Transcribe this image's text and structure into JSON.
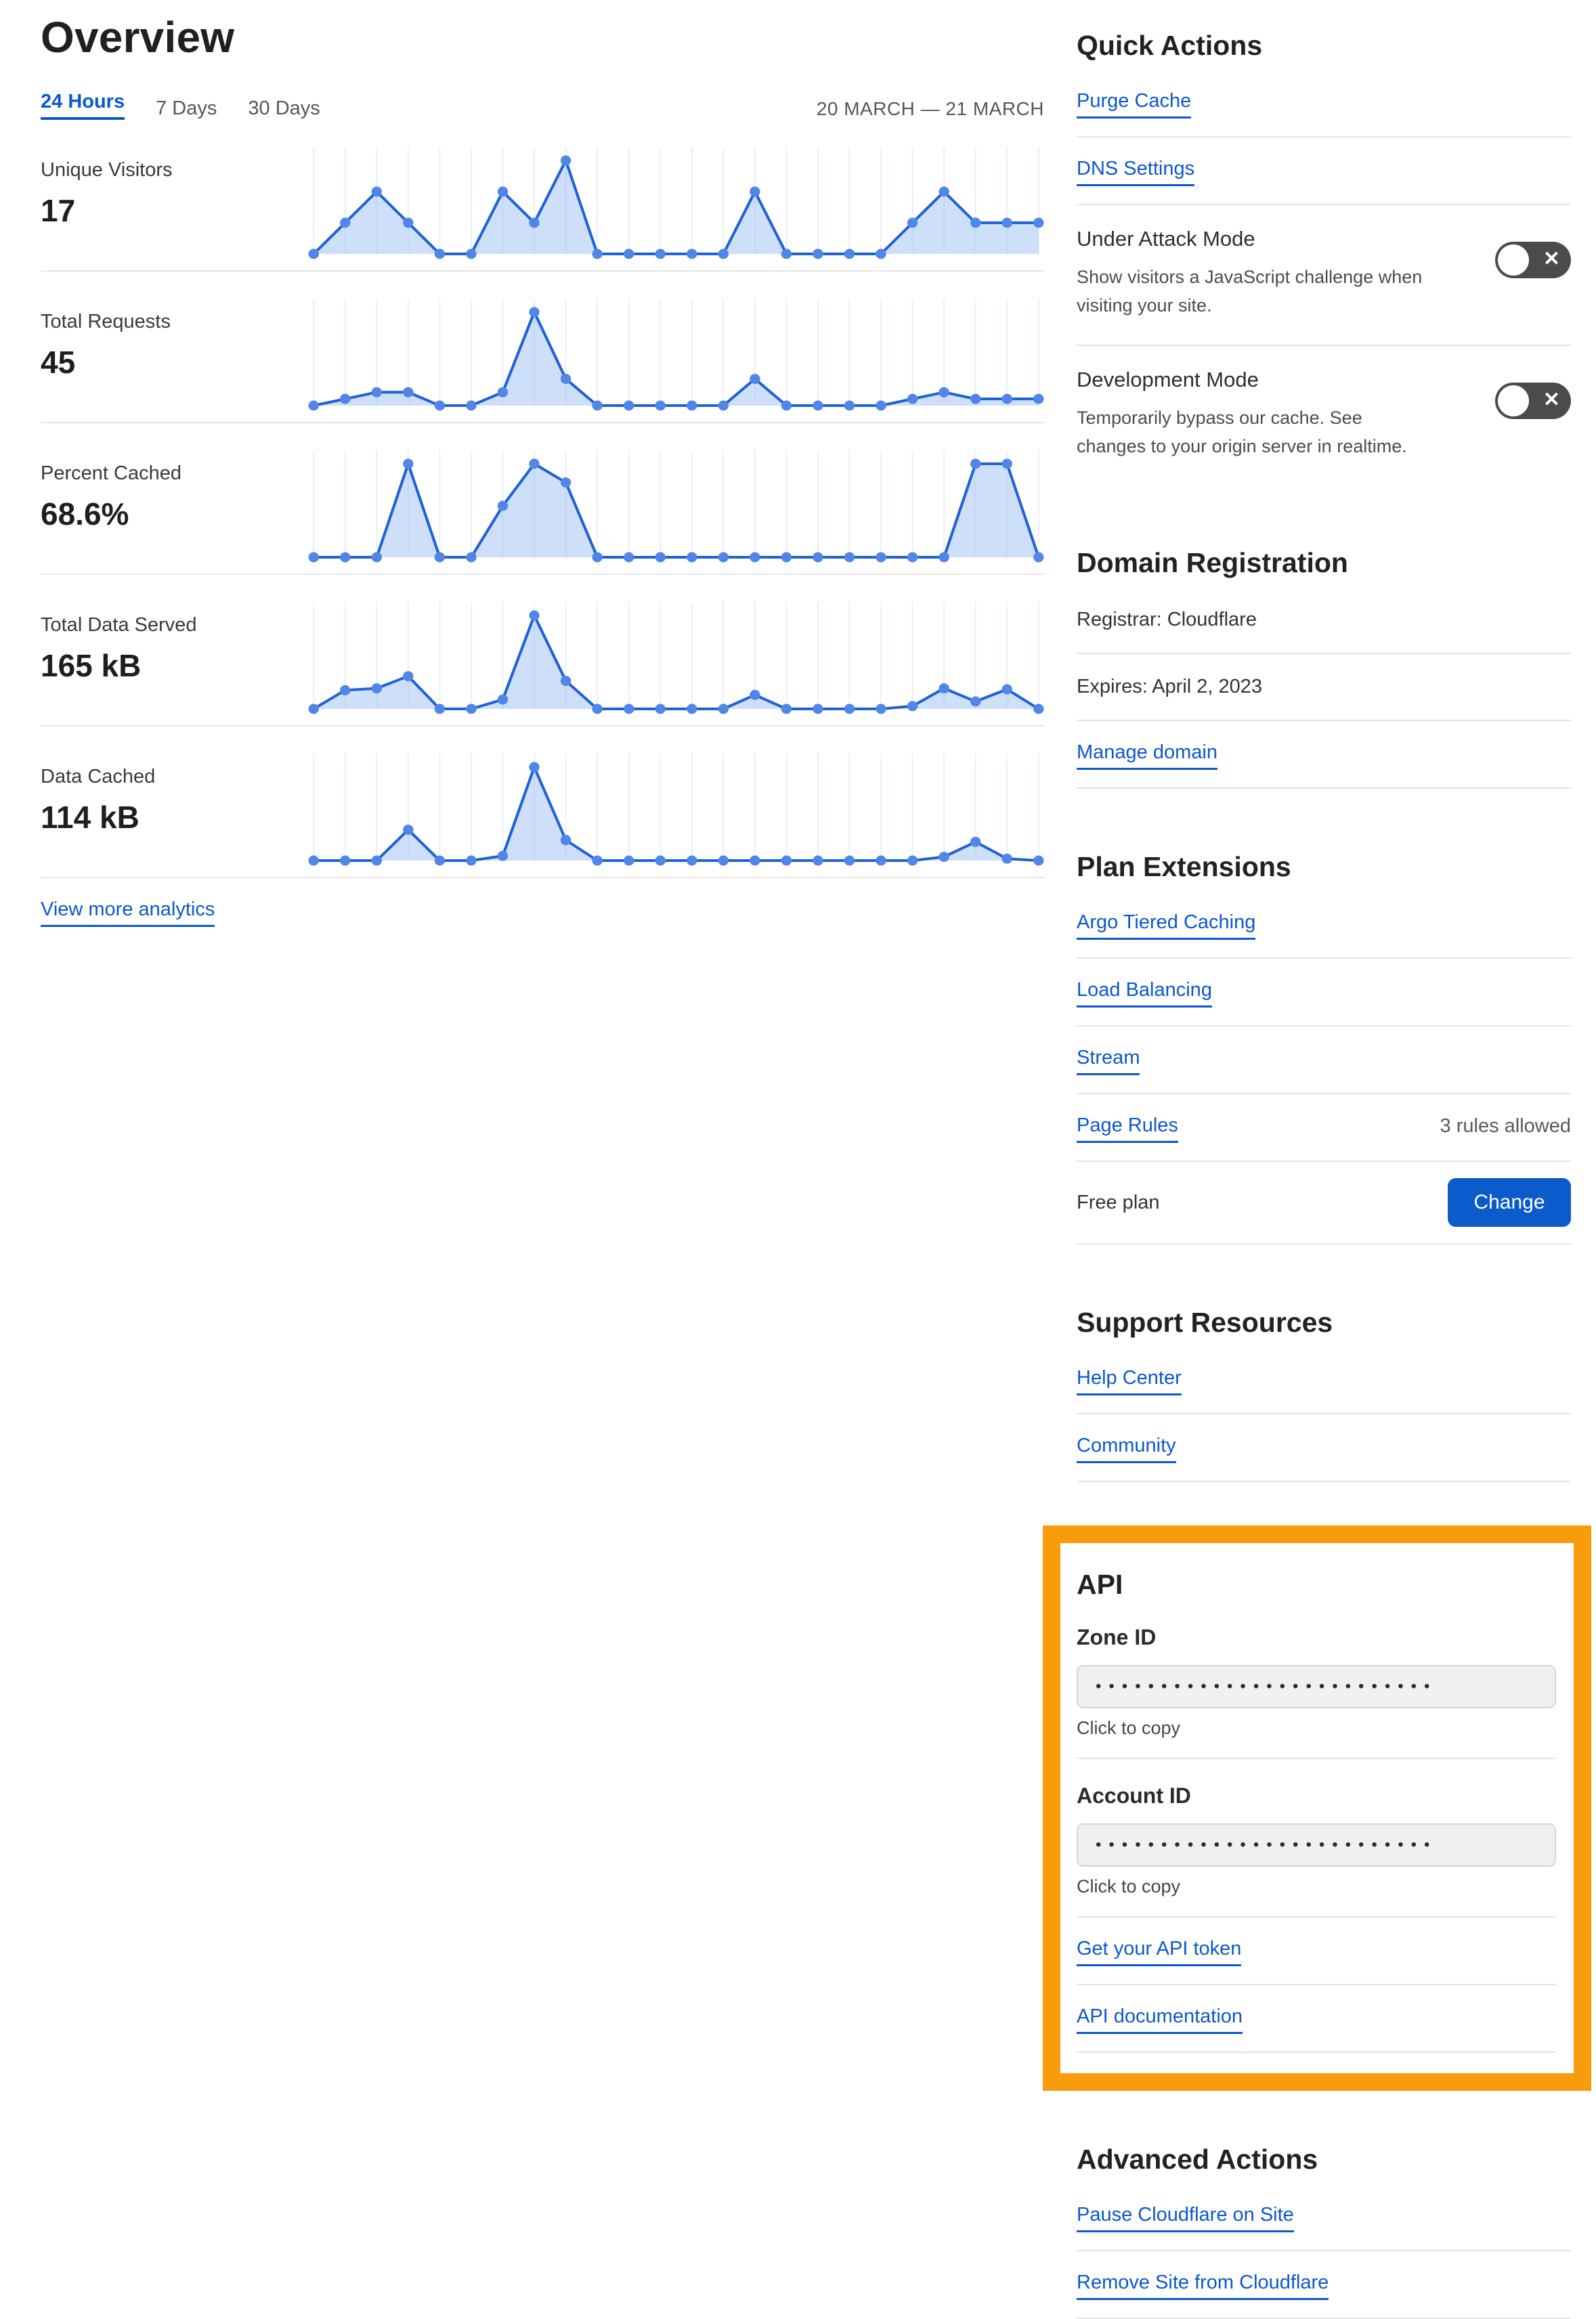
{
  "header": {
    "title": "Overview",
    "tabs": [
      {
        "label": "24 Hours",
        "active": true
      },
      {
        "label": "7 Days",
        "active": false
      },
      {
        "label": "30 Days",
        "active": false
      }
    ],
    "date_range": "20 MARCH — 21 MARCH"
  },
  "metrics": [
    {
      "label": "Unique Visitors",
      "value": "17"
    },
    {
      "label": "Total Requests",
      "value": "45"
    },
    {
      "label": "Percent Cached",
      "value": "68.6%"
    },
    {
      "label": "Total Data Served",
      "value": "165 kB"
    },
    {
      "label": "Data Cached",
      "value": "114 kB"
    }
  ],
  "view_more_label": "View more analytics",
  "quick_actions": {
    "heading": "Quick Actions",
    "purge_cache": "Purge Cache",
    "dns_settings": "DNS Settings",
    "under_attack": {
      "title": "Under Attack Mode",
      "description": "Show visitors a JavaScript challenge when visiting your site.",
      "state": "off"
    },
    "development_mode": {
      "title": "Development Mode",
      "description": "Temporarily bypass our cache. See changes to your origin server in realtime.",
      "state": "off"
    }
  },
  "domain_registration": {
    "heading": "Domain Registration",
    "registrar": "Registrar: Cloudflare",
    "expires": "Expires: April 2, 2023",
    "manage_label": "Manage domain"
  },
  "plan_extensions": {
    "heading": "Plan Extensions",
    "argo": "Argo Tiered Caching",
    "load_balancing": "Load Balancing",
    "stream": "Stream",
    "page_rules": "Page Rules",
    "page_rules_note": "3 rules allowed",
    "plan_label": "Free plan",
    "change_label": "Change"
  },
  "support": {
    "heading": "Support Resources",
    "help_center": "Help Center",
    "community": "Community"
  },
  "api": {
    "heading": "API",
    "zone_id_label": "Zone ID",
    "zone_id_masked": "••••••••••••••••••••••••••",
    "zone_copy": "Click to copy",
    "account_id_label": "Account ID",
    "account_id_masked": "••••••••••••••••••••••••••",
    "account_copy": "Click to copy",
    "token_label": "Get your API token",
    "docs_label": "API documentation"
  },
  "advanced": {
    "heading": "Advanced Actions",
    "pause": "Pause Cloudflare on Site",
    "remove": "Remove Site from Cloudflare"
  },
  "icons": {
    "toggle_off": "✕"
  },
  "colors": {
    "link_blue": "#0b57cf",
    "button_blue": "#0c5bcc",
    "orange_highlight": "#f99c0b",
    "toggle_bg": "#4b4b4b",
    "chart_line": "#1f62d4",
    "chart_fill": "#9cc0f4",
    "chart_dot": "#4f86e8",
    "chart_grid": "#e9effa",
    "divider": "#e4e4e4"
  },
  "chart_data": [
    {
      "type": "area",
      "title": "Unique Visitors",
      "total_label": "17",
      "x_unit": "hourly (24 Hours: 20 March — 21 March)",
      "values": [
        0,
        1,
        2,
        1,
        0,
        0,
        2,
        1,
        3,
        0,
        0,
        0,
        0,
        0,
        2,
        0,
        0,
        0,
        0,
        1,
        2,
        1,
        1,
        1
      ]
    },
    {
      "type": "area",
      "title": "Total Requests",
      "total_label": "45",
      "x_unit": "hourly (24 Hours: 20 March — 21 March)",
      "values": [
        0,
        1,
        2,
        2,
        0,
        0,
        2,
        14,
        4,
        0,
        0,
        0,
        0,
        0,
        4,
        0,
        0,
        0,
        0,
        1,
        2,
        1,
        1,
        1
      ]
    },
    {
      "type": "area",
      "title": "Percent Cached",
      "total_label": "68.6%",
      "x_unit": "hourly (24 Hours: 20 March — 21 March)",
      "values": [
        0,
        0,
        0,
        100,
        0,
        0,
        55,
        100,
        80,
        0,
        0,
        0,
        0,
        0,
        0,
        0,
        0,
        0,
        0,
        0,
        0,
        100,
        100,
        0
      ]
    },
    {
      "type": "area",
      "title": "Total Data Served",
      "total_label": "165 kB",
      "x_unit": "hourly (24 Hours: 20 March — 21 March)",
      "values": [
        0,
        20,
        22,
        35,
        0,
        0,
        10,
        100,
        30,
        0,
        0,
        0,
        0,
        0,
        15,
        0,
        0,
        0,
        0,
        3,
        22,
        8,
        21,
        0
      ]
    },
    {
      "type": "area",
      "title": "Data Cached",
      "total_label": "114 kB",
      "x_unit": "hourly (24 Hours: 20 March — 21 March)",
      "values": [
        0,
        0,
        0,
        33,
        0,
        0,
        5,
        100,
        22,
        0,
        0,
        0,
        0,
        0,
        0,
        0,
        0,
        0,
        0,
        0,
        4,
        20,
        2,
        0
      ]
    }
  ]
}
